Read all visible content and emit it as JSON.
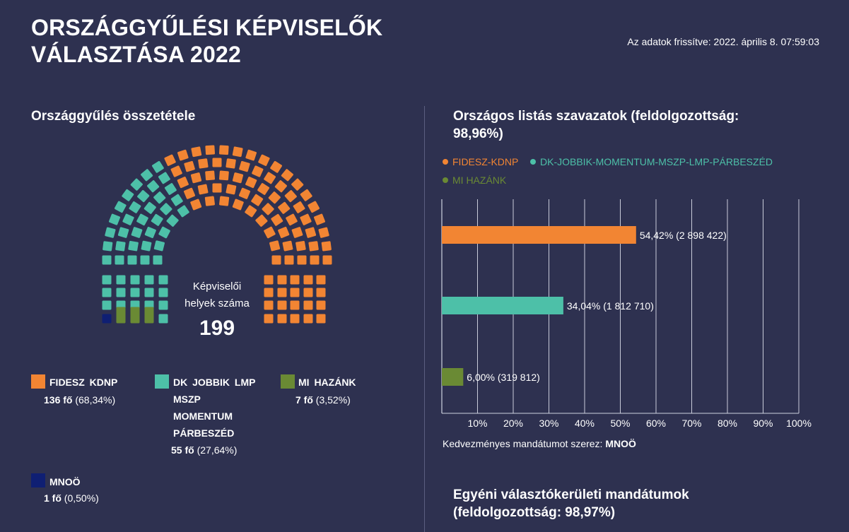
{
  "header": {
    "title_line1": "ORSZÁGGYŰLÉSI KÉPVISELŐK",
    "title_line2": "VÁLASZTÁSA 2022",
    "updated": "Az adatok frissítve: 2022. április 8. 07:59:03"
  },
  "parliament": {
    "heading": "Országgyűlés összetétele",
    "center_label_line1": "Képviselői",
    "center_label_line2": "helyek száma",
    "total": "199",
    "colors": {
      "fidesz": "#f28533",
      "dk": "#4dc0a8",
      "mi": "#6a8a34",
      "mnoo": "#0f1f73"
    },
    "legend": [
      {
        "name": "FIDESZ KDNP",
        "count": "136 fő",
        "pct": "(68,34%)",
        "color": "#f28533"
      },
      {
        "name_lines": [
          "DK JOBBIK LMP",
          "MSZP",
          "MOMENTUM",
          "PÁRBESZÉD"
        ],
        "count": "55 fő",
        "pct": "(27,64%)",
        "color": "#4dc0a8"
      },
      {
        "name": "MI HAZÁNK",
        "count": "7 fő",
        "pct": "(3,52%)",
        "color": "#6a8a34"
      },
      {
        "name": "MNOÖ",
        "count": "1 fő",
        "pct": "(0,50%)",
        "color": "#0f1f73"
      }
    ]
  },
  "list_votes": {
    "heading_line1": "Országos listás szavazatok (feldolgozottság:",
    "heading_line2": "98,96%)",
    "legend": [
      {
        "label": "FIDESZ-KDNP",
        "color": "#f28533"
      },
      {
        "label": "DK-JOBBIK-MOMENTUM-MSZP-LMP-PÁRBESZÉD",
        "color": "#4dc0a8"
      },
      {
        "label": "MI HAZÁNK",
        "color": "#6a8a34"
      }
    ],
    "footnote_prefix": "Kedvezményes mandátumot szerez:",
    "footnote_value": "MNOÖ"
  },
  "chart_data": {
    "type": "bar",
    "orientation": "horizontal",
    "categories": [
      "FIDESZ-KDNP",
      "DK-JOBBIK-MOMENTUM-MSZP-LMP-PÁRBESZÉD",
      "MI HAZÁNK"
    ],
    "values": [
      54.42,
      34.04,
      6.0
    ],
    "value_labels": [
      "54,42% (2 898 422)",
      "34,04% (1 812 710)",
      "6,00% (319 812)"
    ],
    "colors": [
      "#f28533",
      "#4dc0a8",
      "#6a8a34"
    ],
    "xlim": [
      0,
      100
    ],
    "ticks": [
      "10%",
      "20%",
      "30%",
      "40%",
      "50%",
      "60%",
      "70%",
      "80%",
      "90%",
      "100%"
    ],
    "grid": true
  },
  "districts": {
    "heading_line1": "Egyéni választókerületi mandátumok",
    "heading_line2": "(feldolgozottság: 98,97%)"
  }
}
